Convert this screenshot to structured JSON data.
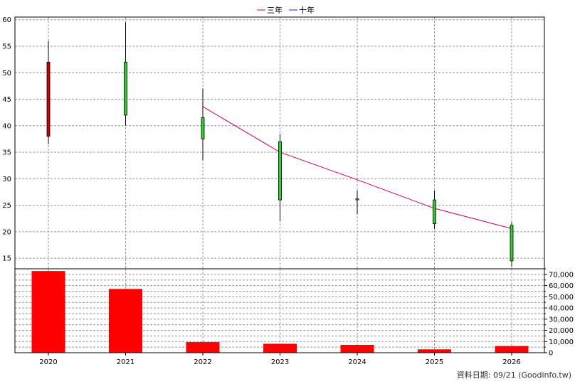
{
  "chart_data": {
    "type": "candlestick+bar",
    "categories": [
      "2020",
      "2021",
      "2022",
      "2023",
      "2024",
      "2025",
      "2026"
    ],
    "candles": [
      {
        "open": 52.0,
        "high": 56.0,
        "low": 36.5,
        "close": 38.0,
        "color": "#cc0000"
      },
      {
        "open": 42.0,
        "high": 59.5,
        "low": 40.0,
        "close": 52.0,
        "color": "#33cc33"
      },
      {
        "open": 37.5,
        "high": 47.0,
        "low": 33.5,
        "close": 41.5,
        "color": "#33cc33"
      },
      {
        "open": 26.0,
        "high": 38.5,
        "low": 22.0,
        "close": 37.0,
        "color": "#33cc33"
      },
      {
        "open": 26.0,
        "high": 27.8,
        "low": 23.3,
        "close": 26.2,
        "color": "#33cc33"
      },
      {
        "open": 21.5,
        "high": 27.8,
        "low": 20.5,
        "close": 26.0,
        "color": "#33cc33"
      },
      {
        "open": 14.5,
        "high": 21.8,
        "low": 13.5,
        "close": 21.2,
        "color": "#33cc33"
      }
    ],
    "lines": [
      {
        "name": "三年",
        "color": "#cc0066",
        "values": [
          null,
          null,
          43.6,
          35.0,
          29.8,
          24.4,
          20.6
        ]
      },
      {
        "name": "十年",
        "color": "#6600cc",
        "values": [
          null,
          null,
          null,
          null,
          null,
          null,
          null
        ]
      }
    ],
    "volume": {
      "values": [
        73000,
        57000,
        9500,
        8000,
        7000,
        3000,
        6000
      ],
      "color": "#ff0000",
      "ylim": [
        0,
        75000
      ]
    },
    "price_ylim": [
      13,
      60.5
    ],
    "price_ticks": [
      15,
      20,
      25,
      30,
      35,
      40,
      45,
      50,
      55,
      60
    ],
    "volume_ticks": [
      "0",
      "10,000",
      "20,000",
      "30,000",
      "40,000",
      "50,000",
      "60,000",
      "70,000"
    ],
    "volume_tick_values": [
      0,
      10000,
      20000,
      30000,
      40000,
      50000,
      60000,
      70000
    ],
    "footer": "資料日期: 09/21  (Goodinfo.tw)"
  }
}
